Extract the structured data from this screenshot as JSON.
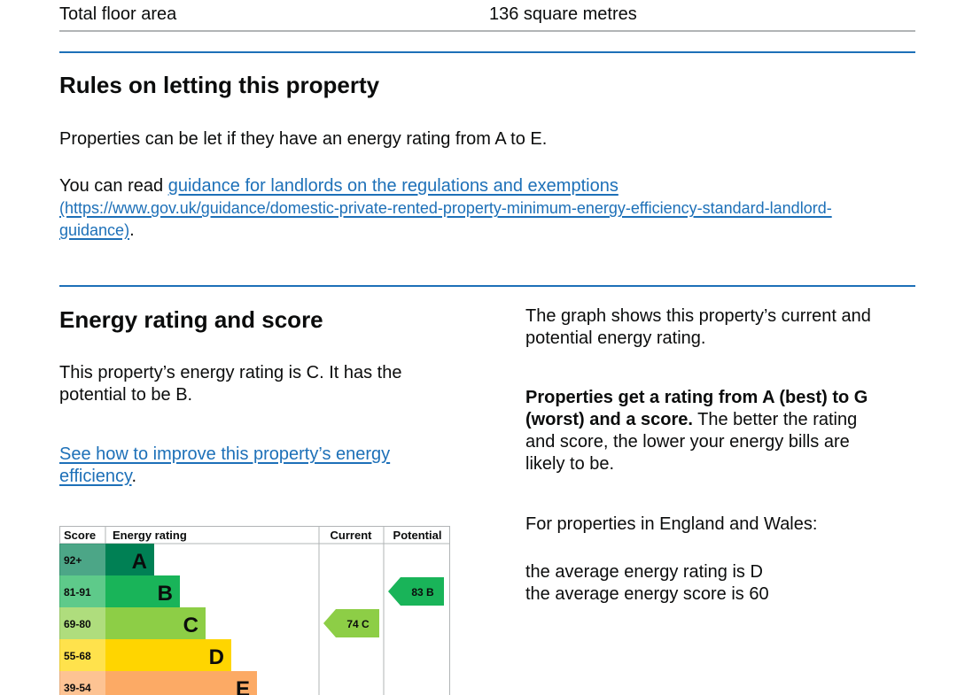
{
  "summary": {
    "label": "Total floor area",
    "value": "136 square metres"
  },
  "letting": {
    "heading": "Rules on letting this property",
    "para1": "Properties can be let if they have an energy rating from A to E.",
    "read_prefix": "You can read ",
    "link_text": "guidance for landlords on the regulations and exemptions",
    "link_url_line1": "(https://www.gov.uk/guidance/domestic-private-rented-property-minimum-energy-efficiency-standard-landlord-",
    "link_url_line2": "guidance)",
    "period": "."
  },
  "energy": {
    "heading": "Energy rating and score",
    "rating_line1": "This property’s energy rating is C. It has the",
    "rating_line2": "potential to be B.",
    "improve_link_line1": "See how to improve this property’s energy",
    "improve_link_line2": "efficiency",
    "period": "."
  },
  "side": {
    "graph_line1": "The graph shows this property’s current and",
    "graph_line2": "potential energy rating.",
    "bold_line1": "Properties get a rating from A (best) to G",
    "bold_line2": "(worst) and a score.",
    "normal_line2": " The better the rating",
    "line3": "and score, the lower your energy bills are",
    "line4": "likely to be.",
    "region": "For properties in England and Wales:",
    "avg_rating": "the average energy rating is D",
    "avg_score": "the average energy score is 60"
  },
  "chart_data": {
    "type": "table",
    "headers": {
      "score": "Score",
      "rating": "Energy rating",
      "current": "Current",
      "potential": "Potential"
    },
    "bands": [
      {
        "range": "92+",
        "letter": "A",
        "color": "#008054"
      },
      {
        "range": "81-91",
        "letter": "B",
        "color": "#19b459"
      },
      {
        "range": "69-80",
        "letter": "C",
        "color": "#8dce46"
      },
      {
        "range": "55-68",
        "letter": "D",
        "color": "#ffd500"
      },
      {
        "range": "39-54",
        "letter": "E",
        "color": "#fcaa65"
      }
    ],
    "current": {
      "score": 74,
      "band": "C",
      "label": "74 C",
      "color": "#8dce46"
    },
    "potential": {
      "score": 83,
      "band": "B",
      "label": "83 B",
      "color": "#19b459"
    }
  }
}
